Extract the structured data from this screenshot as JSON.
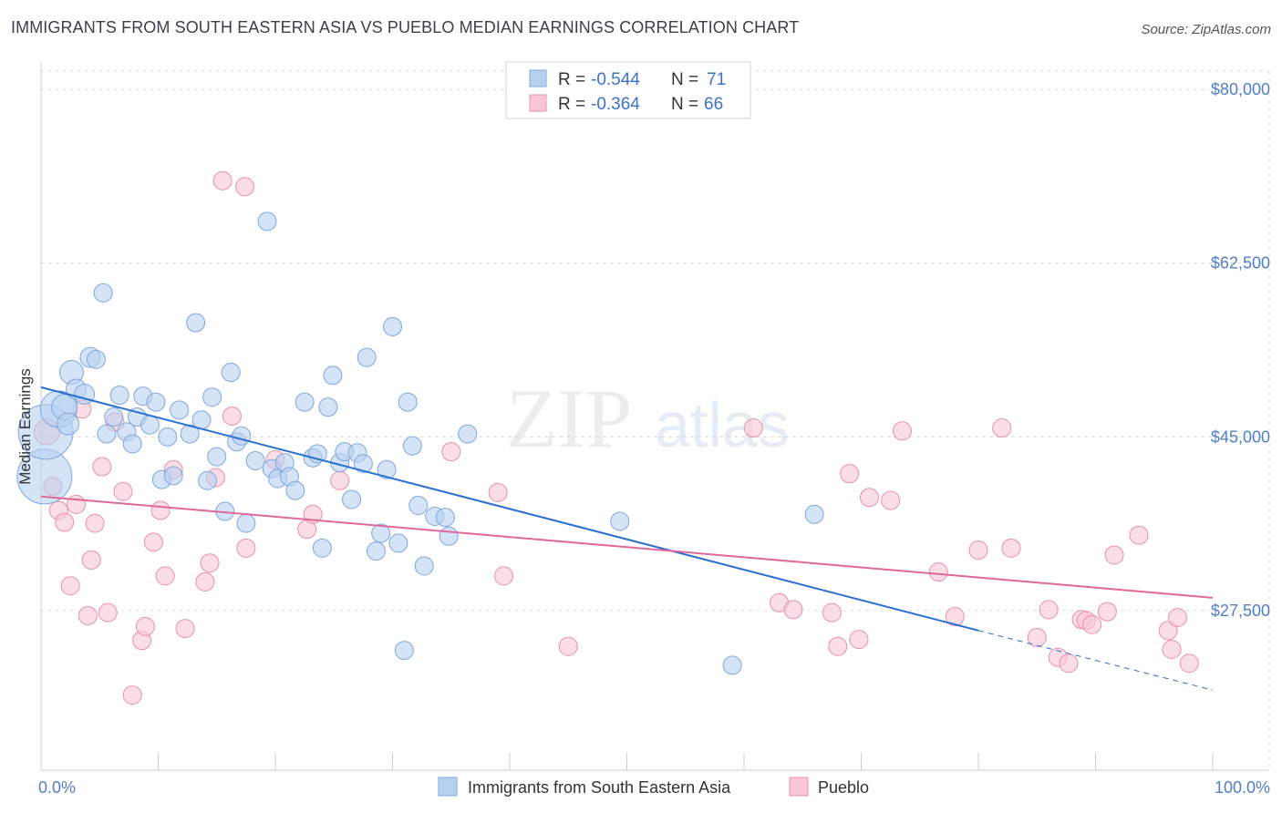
{
  "title": "IMMIGRANTS FROM SOUTH EASTERN ASIA VS PUEBLO MEDIAN EARNINGS CORRELATION CHART",
  "source": "Source: ZipAtlas.com",
  "watermark": {
    "zip": "ZIP",
    "atlas": "atlas"
  },
  "colors": {
    "blue_fill": "#b8d0f0",
    "blue_stroke": "#7ea7dd",
    "blue_line": "#2a6fd0",
    "pink_fill": "#f8c6d4",
    "pink_stroke": "#e990ac",
    "pink_line": "#e0689a",
    "tick_label": "#4f7fc7",
    "grid": "#dcdcdc"
  },
  "legend": {
    "rows": [
      {
        "r_label": "R =",
        "r_value": "-0.544",
        "n_label": "N =",
        "n_value": "71"
      },
      {
        "r_label": "R =",
        "r_value": "-0.364",
        "n_label": "N =",
        "n_value": "66"
      }
    ]
  },
  "chart_data": {
    "type": "scatter",
    "title": "IMMIGRANTS FROM SOUTH EASTERN ASIA VS PUEBLO MEDIAN EARNINGS CORRELATION CHART",
    "xlabel": "",
    "ylabel": "Median Earnings",
    "xlim": [
      0,
      100
    ],
    "ylim": [
      13000,
      82000
    ],
    "x_tick_labels": [
      "0.0%",
      "100.0%"
    ],
    "y_ticks": [
      {
        "value": 80000,
        "label": "$80,000"
      },
      {
        "value": 62500,
        "label": "$62,500"
      },
      {
        "value": 45000,
        "label": "$45,000"
      },
      {
        "value": 27500,
        "label": "$27,500"
      }
    ],
    "grid": true,
    "legend_position": "top-center",
    "series": [
      {
        "name": "Immigrants from South Eastern Asia",
        "r": -0.544,
        "n": 71,
        "trend": {
          "x0": 0,
          "y0": 50000,
          "x1": 80,
          "y1": 25500,
          "dashed_to_x": 100,
          "dashed_to_y": 19500
        },
        "points": [
          [
            0.3,
            41000,
            30
          ],
          [
            0.4,
            45500,
            30
          ],
          [
            1.5,
            47800,
            20
          ],
          [
            2.0,
            48000,
            14
          ],
          [
            2.3,
            46300,
            12
          ],
          [
            2.6,
            51500,
            13
          ],
          [
            3.0,
            49800,
            11
          ],
          [
            3.7,
            49300,
            11
          ],
          [
            4.2,
            53000,
            11
          ],
          [
            4.7,
            52800,
            10
          ],
          [
            5.3,
            59500,
            10
          ],
          [
            5.6,
            45300,
            10
          ],
          [
            6.2,
            47000,
            10
          ],
          [
            6.7,
            49200,
            10
          ],
          [
            7.3,
            45500,
            10
          ],
          [
            7.8,
            44300,
            10
          ],
          [
            8.2,
            47000,
            10
          ],
          [
            8.7,
            49100,
            10
          ],
          [
            9.3,
            46200,
            10
          ],
          [
            9.8,
            48500,
            10
          ],
          [
            10.3,
            40700,
            10
          ],
          [
            10.8,
            45000,
            10
          ],
          [
            11.3,
            41100,
            10
          ],
          [
            11.8,
            47700,
            10
          ],
          [
            12.7,
            45300,
            10
          ],
          [
            13.2,
            56500,
            10
          ],
          [
            13.7,
            46700,
            10
          ],
          [
            14.2,
            40600,
            10
          ],
          [
            14.6,
            49000,
            10
          ],
          [
            15.0,
            43000,
            10
          ],
          [
            15.7,
            37500,
            10
          ],
          [
            16.2,
            51500,
            10
          ],
          [
            16.7,
            44500,
            10
          ],
          [
            17.1,
            45100,
            10
          ],
          [
            17.5,
            36300,
            10
          ],
          [
            18.3,
            42600,
            10
          ],
          [
            19.3,
            66700,
            10
          ],
          [
            19.7,
            41800,
            10
          ],
          [
            20.2,
            40800,
            10
          ],
          [
            20.8,
            42400,
            10
          ],
          [
            21.2,
            41000,
            10
          ],
          [
            21.7,
            39600,
            10
          ],
          [
            22.5,
            48500,
            10
          ],
          [
            23.2,
            42900,
            10
          ],
          [
            23.6,
            43300,
            10
          ],
          [
            24.0,
            33800,
            10
          ],
          [
            24.5,
            48000,
            10
          ],
          [
            24.9,
            51200,
            10
          ],
          [
            25.5,
            42400,
            10
          ],
          [
            25.9,
            43500,
            10
          ],
          [
            26.5,
            38700,
            10
          ],
          [
            27.0,
            43400,
            10
          ],
          [
            27.5,
            42300,
            10
          ],
          [
            27.8,
            53000,
            10
          ],
          [
            28.6,
            33500,
            10
          ],
          [
            29.0,
            35300,
            10
          ],
          [
            29.5,
            41700,
            10
          ],
          [
            30.0,
            56100,
            10
          ],
          [
            30.5,
            34300,
            10
          ],
          [
            31.3,
            48500,
            10
          ],
          [
            31.7,
            44100,
            10
          ],
          [
            32.2,
            38100,
            10
          ],
          [
            32.7,
            32000,
            10
          ],
          [
            33.6,
            37000,
            10
          ],
          [
            34.5,
            36900,
            10
          ],
          [
            34.8,
            35000,
            10
          ],
          [
            36.4,
            45300,
            10
          ],
          [
            31.0,
            23500,
            10
          ],
          [
            49.4,
            36500,
            10
          ],
          [
            66.0,
            37200,
            10
          ],
          [
            59.0,
            22000,
            10
          ]
        ]
      },
      {
        "name": "Pueblo",
        "r": -0.364,
        "n": 66,
        "trend": {
          "x0": 0,
          "y0": 39000,
          "x1": 100,
          "y1": 28800
        },
        "points": [
          [
            0.5,
            45500,
            14
          ],
          [
            1.0,
            40000,
            10
          ],
          [
            1.5,
            37600,
            10
          ],
          [
            2.0,
            36400,
            10
          ],
          [
            2.5,
            30000,
            10
          ],
          [
            3.0,
            38200,
            10
          ],
          [
            3.5,
            47800,
            10
          ],
          [
            4.0,
            27000,
            10
          ],
          [
            4.3,
            32600,
            10
          ],
          [
            4.6,
            36300,
            10
          ],
          [
            5.2,
            42000,
            10
          ],
          [
            5.7,
            27300,
            10
          ],
          [
            6.3,
            46500,
            10
          ],
          [
            7.0,
            39500,
            10
          ],
          [
            7.8,
            19000,
            10
          ],
          [
            8.6,
            24500,
            10
          ],
          [
            8.9,
            25900,
            10
          ],
          [
            9.6,
            34400,
            10
          ],
          [
            10.2,
            37600,
            10
          ],
          [
            10.6,
            31000,
            10
          ],
          [
            11.3,
            41700,
            10
          ],
          [
            12.3,
            25700,
            10
          ],
          [
            14.0,
            30400,
            10
          ],
          [
            14.4,
            32300,
            10
          ],
          [
            14.9,
            40900,
            10
          ],
          [
            16.3,
            47100,
            10
          ],
          [
            17.5,
            33800,
            10
          ],
          [
            20.0,
            42700,
            10
          ],
          [
            22.7,
            35700,
            10
          ],
          [
            23.2,
            37200,
            10
          ],
          [
            25.5,
            40600,
            10
          ],
          [
            15.5,
            70800,
            10
          ],
          [
            17.4,
            70200,
            10
          ],
          [
            35.0,
            43500,
            10
          ],
          [
            39.0,
            39400,
            10
          ],
          [
            39.5,
            31000,
            10
          ],
          [
            45.0,
            23900,
            10
          ],
          [
            60.8,
            45900,
            10
          ],
          [
            63.0,
            28300,
            10
          ],
          [
            64.2,
            27600,
            10
          ],
          [
            67.5,
            27300,
            10
          ],
          [
            68.0,
            23900,
            10
          ],
          [
            69.0,
            41300,
            10
          ],
          [
            69.8,
            24600,
            10
          ],
          [
            70.7,
            38900,
            10
          ],
          [
            72.5,
            38600,
            10
          ],
          [
            73.5,
            45600,
            10
          ],
          [
            76.6,
            31400,
            10
          ],
          [
            78.0,
            26900,
            10
          ],
          [
            80.0,
            33600,
            10
          ],
          [
            82.0,
            45900,
            10
          ],
          [
            82.8,
            33800,
            10
          ],
          [
            85.0,
            24800,
            10
          ],
          [
            86.0,
            27600,
            10
          ],
          [
            86.8,
            22800,
            10
          ],
          [
            87.7,
            22200,
            10
          ],
          [
            88.8,
            26600,
            10
          ],
          [
            89.2,
            26500,
            10
          ],
          [
            89.7,
            26100,
            10
          ],
          [
            91.0,
            27400,
            10
          ],
          [
            91.6,
            33100,
            10
          ],
          [
            93.7,
            35100,
            10
          ],
          [
            96.2,
            25500,
            10
          ],
          [
            96.5,
            23600,
            10
          ],
          [
            97.0,
            26800,
            10
          ],
          [
            98.0,
            22200,
            10
          ]
        ]
      }
    ]
  }
}
